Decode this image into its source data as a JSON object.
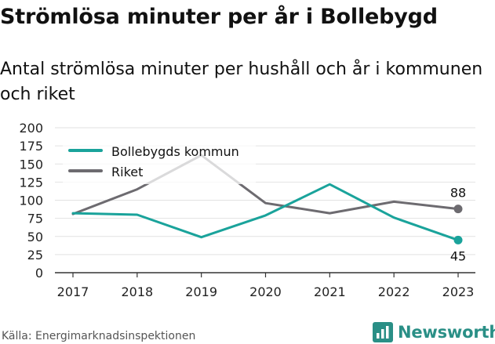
{
  "header": {
    "title": "Strömlösa minuter per år i Bollebygd",
    "subtitle": "Antal strömlösa minuter per hushåll och år i kommunen och riket"
  },
  "footer": {
    "source": "Källa: Energimarknadsinspektionen",
    "brand": "Newsworthy"
  },
  "colors": {
    "bollebygd": "#1aa39b",
    "riket": "#6d6b70",
    "grid": "#e2e2e2",
    "brand": "#2a8f86"
  },
  "icons": {
    "logo": "bar-chart-logo-icon"
  },
  "chart_data": {
    "type": "line",
    "x": [
      "2017",
      "2018",
      "2019",
      "2020",
      "2021",
      "2022",
      "2023"
    ],
    "series": [
      {
        "name": "Bollebygds kommun",
        "values": [
          82,
          80,
          49,
          79,
          122,
          76,
          45
        ]
      },
      {
        "name": "Riket",
        "values": [
          81,
          115,
          162,
          96,
          82,
          98,
          88
        ]
      }
    ],
    "end_labels": [
      "45",
      "88"
    ],
    "yticks": [
      "0",
      "25",
      "50",
      "75",
      "100",
      "125",
      "150",
      "175",
      "200"
    ],
    "ylim": [
      0,
      200
    ],
    "grid": true,
    "legend": "top-left"
  }
}
